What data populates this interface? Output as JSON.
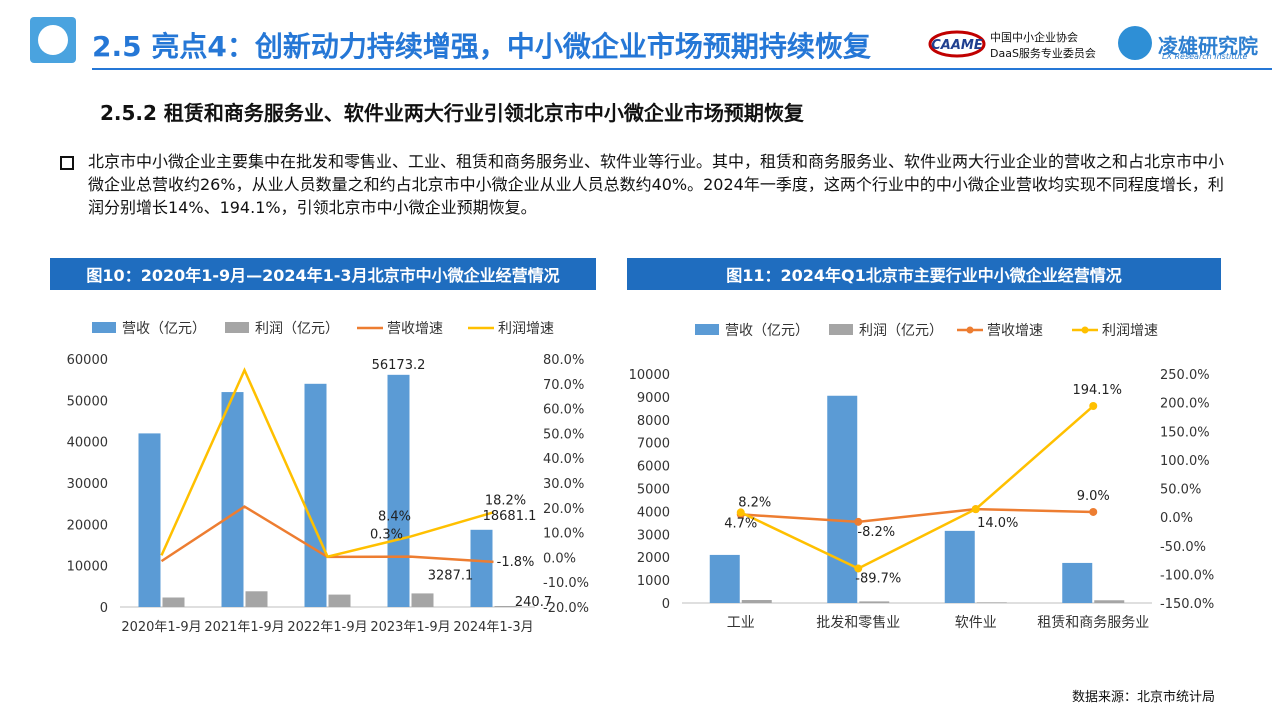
{
  "header": {
    "title": "2.5 亮点4：创新动力持续增强，中小微企业市场预期持续恢复",
    "assoc_line1": "中国中小企业协会",
    "assoc_line2": "DaaS服务专业委员会",
    "caame_logo_text": "CAAME",
    "lx_name": "凌雄研究院",
    "lx_en": "LX Research Institute"
  },
  "subtitle": "2.5.2 租赁和商务服务业、软件业两大行业引领北京市中小微企业市场预期恢复",
  "paragraph": "北京市中小微企业主要集中在批发和零售业、工业、租赁和商务服务业、软件业等行业。其中，租赁和商务服务业、软件业两大行业企业的营收之和占北京市中小微企业总营收约26%，从业人员数量之和约占北京市中小微企业从业人员总数约40%。2024年一季度，这两个行业中的中小微企业营收均实现不同程度增长，利润分别增长14%、194.1%，引领北京市中小微企业预期恢复。",
  "footer": {
    "source": "数据来源：北京市统计局"
  },
  "colors": {
    "revenue": "#5b9bd5",
    "profit": "#a5a5a5",
    "rev_growth": "#ed7d31",
    "profit_growth": "#ffc000",
    "brand_blue": "#2577d6",
    "panel_blue": "#1f6dbf"
  },
  "chart_data": [
    {
      "panel_title": "图10：2020年1-9月—2024年1-3月北京市中小微企业经营情况",
      "type": "bar",
      "categories": [
        "2020年1-9月",
        "2021年1-9月",
        "2022年1-9月",
        "2023年1-9月",
        "2024年1-3月"
      ],
      "series": [
        {
          "name": "营收（亿元）",
          "type": "bar",
          "axis": "left",
          "values": [
            42000,
            52000,
            54000,
            56173.2,
            18681.1
          ]
        },
        {
          "name": "利润（亿元）",
          "type": "bar",
          "axis": "left",
          "values": [
            2300,
            3800,
            3000,
            3287.1,
            240.7
          ]
        },
        {
          "name": "营收增速",
          "type": "line",
          "axis": "right",
          "values": [
            -1.5,
            20.5,
            0.2,
            0.3,
            -1.8
          ]
        },
        {
          "name": "利润增速",
          "type": "line",
          "axis": "right",
          "values": [
            0.8,
            75.5,
            0.3,
            8.4,
            18.2
          ]
        }
      ],
      "data_labels": [
        {
          "series": 0,
          "index": 3,
          "text": "56173.2"
        },
        {
          "series": 0,
          "index": 4,
          "text": "18681.1"
        },
        {
          "series": 1,
          "index": 3,
          "text": "3287.1"
        },
        {
          "series": 1,
          "index": 4,
          "text": "240.7"
        },
        {
          "series": 2,
          "index": 3,
          "text": "0.3%"
        },
        {
          "series": 2,
          "index": 4,
          "text": "-1.8%"
        },
        {
          "series": 3,
          "index": 3,
          "text": "8.4%"
        },
        {
          "series": 3,
          "index": 4,
          "text": "18.2%"
        }
      ],
      "ylim": [
        0,
        60000
      ],
      "yticks": [
        "0",
        "10000",
        "20000",
        "30000",
        "40000",
        "50000",
        "60000"
      ],
      "y2lim": [
        -20,
        80
      ],
      "y2ticks": [
        "-20.0%",
        "-10.0%",
        "0.0%",
        "10.0%",
        "20.0%",
        "30.0%",
        "40.0%",
        "50.0%",
        "60.0%",
        "70.0%",
        "80.0%"
      ],
      "legend": "top",
      "grid": false
    },
    {
      "panel_title": "图11：2024年Q1北京市主要行业中小微企业经营情况",
      "type": "bar",
      "categories": [
        "工业",
        "批发和零售业",
        "软件业",
        "租赁和商务服务业"
      ],
      "series": [
        {
          "name": "营收（亿元）",
          "type": "bar",
          "axis": "left",
          "values": [
            2100,
            9050,
            3150,
            1750
          ]
        },
        {
          "name": "利润（亿元）",
          "type": "bar",
          "axis": "left",
          "values": [
            130,
            70,
            30,
            120
          ]
        },
        {
          "name": "营收增速",
          "type": "line",
          "axis": "right",
          "values": [
            4.7,
            -8.2,
            14.0,
            9.0
          ]
        },
        {
          "name": "利润增速",
          "type": "line",
          "axis": "right",
          "values": [
            8.2,
            -89.7,
            14.0,
            194.1
          ]
        }
      ],
      "data_labels": [
        {
          "series": 2,
          "index": 0,
          "text": "4.7%"
        },
        {
          "series": 3,
          "index": 0,
          "text": "8.2%"
        },
        {
          "series": 2,
          "index": 1,
          "text": "-8.2%"
        },
        {
          "series": 3,
          "index": 1,
          "text": "-89.7%"
        },
        {
          "series": 2,
          "index": 2,
          "text": "14.0%"
        },
        {
          "series": 2,
          "index": 3,
          "text": "9.0%"
        },
        {
          "series": 3,
          "index": 3,
          "text": "194.1%"
        }
      ],
      "ylim": [
        0,
        10000
      ],
      "yticks": [
        "0",
        "1000",
        "2000",
        "3000",
        "4000",
        "5000",
        "6000",
        "7000",
        "8000",
        "9000",
        "10000"
      ],
      "y2lim": [
        -150,
        250
      ],
      "y2ticks": [
        "-150.0%",
        "-100.0%",
        "-50.0%",
        "0.0%",
        "50.0%",
        "100.0%",
        "150.0%",
        "200.0%",
        "250.0%"
      ],
      "legend": "top",
      "grid": false
    }
  ]
}
